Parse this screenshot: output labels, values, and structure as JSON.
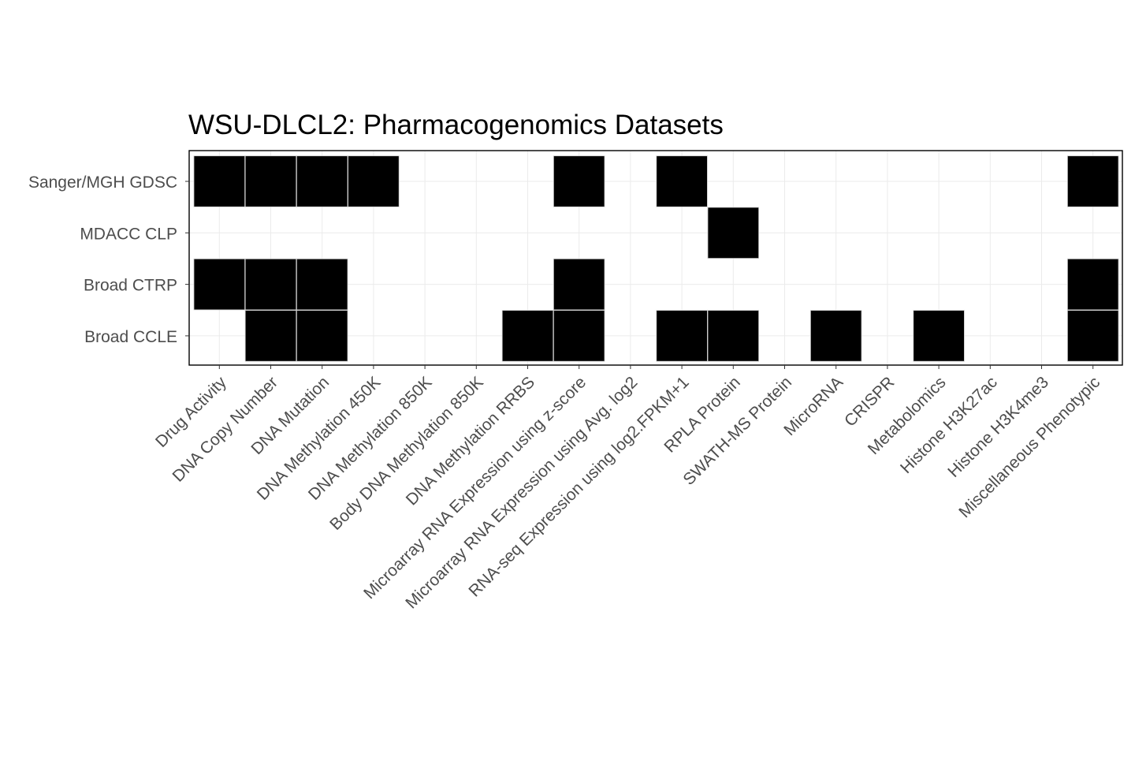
{
  "chart_data": {
    "type": "heatmap",
    "title": "WSU-DLCL2: Pharmacogenomics Datasets",
    "xlabel": "",
    "ylabel": "",
    "legend": "none",
    "grid": true,
    "fill_color": "#000000",
    "x_categories": [
      "Drug Activity",
      "DNA Copy Number",
      "DNA Mutation",
      "DNA Methylation 450K",
      "DNA Methylation 850K",
      "Body DNA Methylation 850K",
      "DNA Methylation RRBS",
      "Microarray RNA Expression using z-score",
      "Microarray RNA Expression using Avg. log2",
      "RNA-seq Expression using log2.FPKM+1",
      "RPLA Protein",
      "SWATH-MS Protein",
      "MicroRNA",
      "CRISPR",
      "Metabolomics",
      "Histone H3K27ac",
      "Histone H3K4me3",
      "Miscellaneous Phenotypic"
    ],
    "y_categories": [
      "Sanger/MGH GDSC",
      "MDACC CLP",
      "Broad CTRP",
      "Broad CCLE"
    ],
    "values": [
      [
        1,
        1,
        1,
        1,
        0,
        0,
        0,
        1,
        0,
        1,
        0,
        0,
        0,
        0,
        0,
        0,
        0,
        1
      ],
      [
        0,
        0,
        0,
        0,
        0,
        0,
        0,
        0,
        0,
        0,
        1,
        0,
        0,
        0,
        0,
        0,
        0,
        0
      ],
      [
        1,
        1,
        1,
        0,
        0,
        0,
        0,
        1,
        0,
        0,
        0,
        0,
        0,
        0,
        0,
        0,
        0,
        1
      ],
      [
        0,
        1,
        1,
        0,
        0,
        0,
        1,
        1,
        0,
        1,
        1,
        0,
        1,
        0,
        1,
        0,
        0,
        1
      ]
    ]
  }
}
